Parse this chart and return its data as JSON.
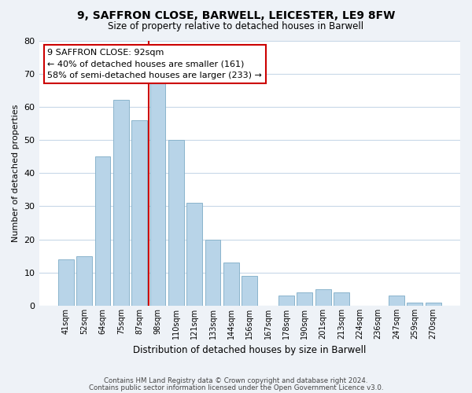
{
  "title": "9, SAFFRON CLOSE, BARWELL, LEICESTER, LE9 8FW",
  "subtitle": "Size of property relative to detached houses in Barwell",
  "xlabel": "Distribution of detached houses by size in Barwell",
  "ylabel": "Number of detached properties",
  "bar_labels": [
    "41sqm",
    "52sqm",
    "64sqm",
    "75sqm",
    "87sqm",
    "98sqm",
    "110sqm",
    "121sqm",
    "133sqm",
    "144sqm",
    "156sqm",
    "167sqm",
    "178sqm",
    "190sqm",
    "201sqm",
    "213sqm",
    "224sqm",
    "236sqm",
    "247sqm",
    "259sqm",
    "270sqm"
  ],
  "bar_values": [
    14,
    15,
    45,
    62,
    56,
    67,
    50,
    31,
    20,
    13,
    9,
    0,
    3,
    4,
    5,
    4,
    0,
    0,
    3,
    1,
    1
  ],
  "bar_color": "#b8d4e8",
  "bar_edge_color": "#8ab4cc",
  "ref_line_color": "#cc0000",
  "ref_line_x": 4.5,
  "annotation_title": "9 SAFFRON CLOSE: 92sqm",
  "annotation_line1": "← 40% of detached houses are smaller (161)",
  "annotation_line2": "58% of semi-detached houses are larger (233) →",
  "annotation_box_edge_color": "#cc0000",
  "annotation_box_face_color": "#ffffff",
  "ylim": [
    0,
    80
  ],
  "yticks": [
    0,
    10,
    20,
    30,
    40,
    50,
    60,
    70,
    80
  ],
  "footer_line1": "Contains HM Land Registry data © Crown copyright and database right 2024.",
  "footer_line2": "Contains public sector information licensed under the Open Government Licence v3.0.",
  "bg_color": "#eef2f7",
  "plot_bg_color": "#ffffff",
  "grid_color": "#c8d8e8",
  "title_fontsize": 10,
  "subtitle_fontsize": 8.5
}
